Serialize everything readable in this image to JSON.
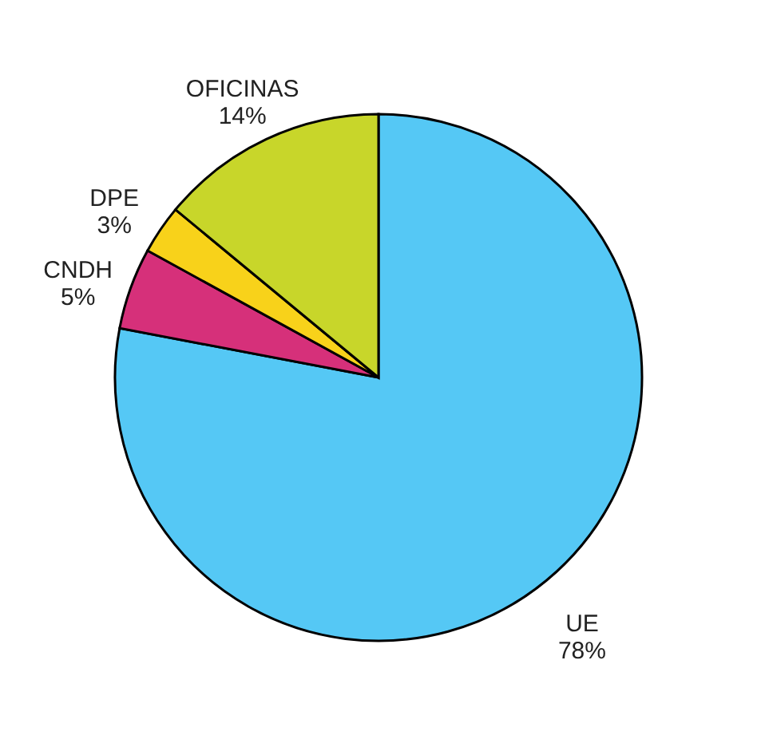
{
  "chart_data": {
    "type": "pie",
    "categories": [
      "UE",
      "CNDH",
      "DPE",
      "OFICINAS"
    ],
    "values": [
      78,
      5,
      3,
      14
    ],
    "value_labels": [
      "78%",
      "5%",
      "3%",
      "14%"
    ],
    "colors": [
      "#55c8f5",
      "#d6307a",
      "#f8d21a",
      "#c8d62a"
    ],
    "legend": false
  }
}
